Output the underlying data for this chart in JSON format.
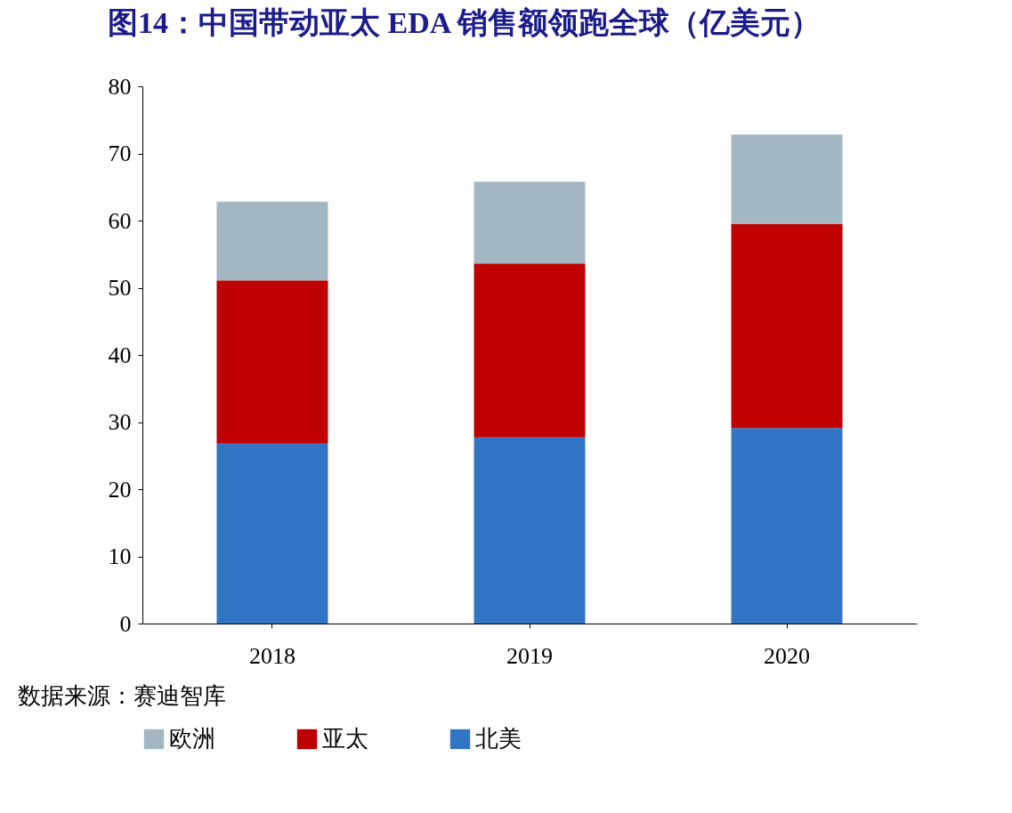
{
  "chart_data": {
    "type": "bar",
    "stacked": true,
    "title": "图14：中国带动亚太 EDA 销售额领跑全球（亿美元）",
    "categories": [
      "2018",
      "2019",
      "2020"
    ],
    "series": [
      {
        "name": "北美",
        "color": "#3375c5",
        "values": [
          26.8,
          27.7,
          29.1
        ]
      },
      {
        "name": "亚太",
        "color": "#c00000",
        "values": [
          24.3,
          25.9,
          30.4
        ]
      },
      {
        "name": "欧洲",
        "color": "#a2b7c2",
        "values": [
          11.7,
          12.2,
          13.3
        ]
      }
    ],
    "ylim": [
      0,
      80
    ],
    "yticks": [
      0,
      10,
      20,
      30,
      40,
      50,
      60,
      70,
      80
    ],
    "grid": false,
    "legend": "bottom",
    "annotations": [
      "数据来源：赛迪智库"
    ]
  }
}
